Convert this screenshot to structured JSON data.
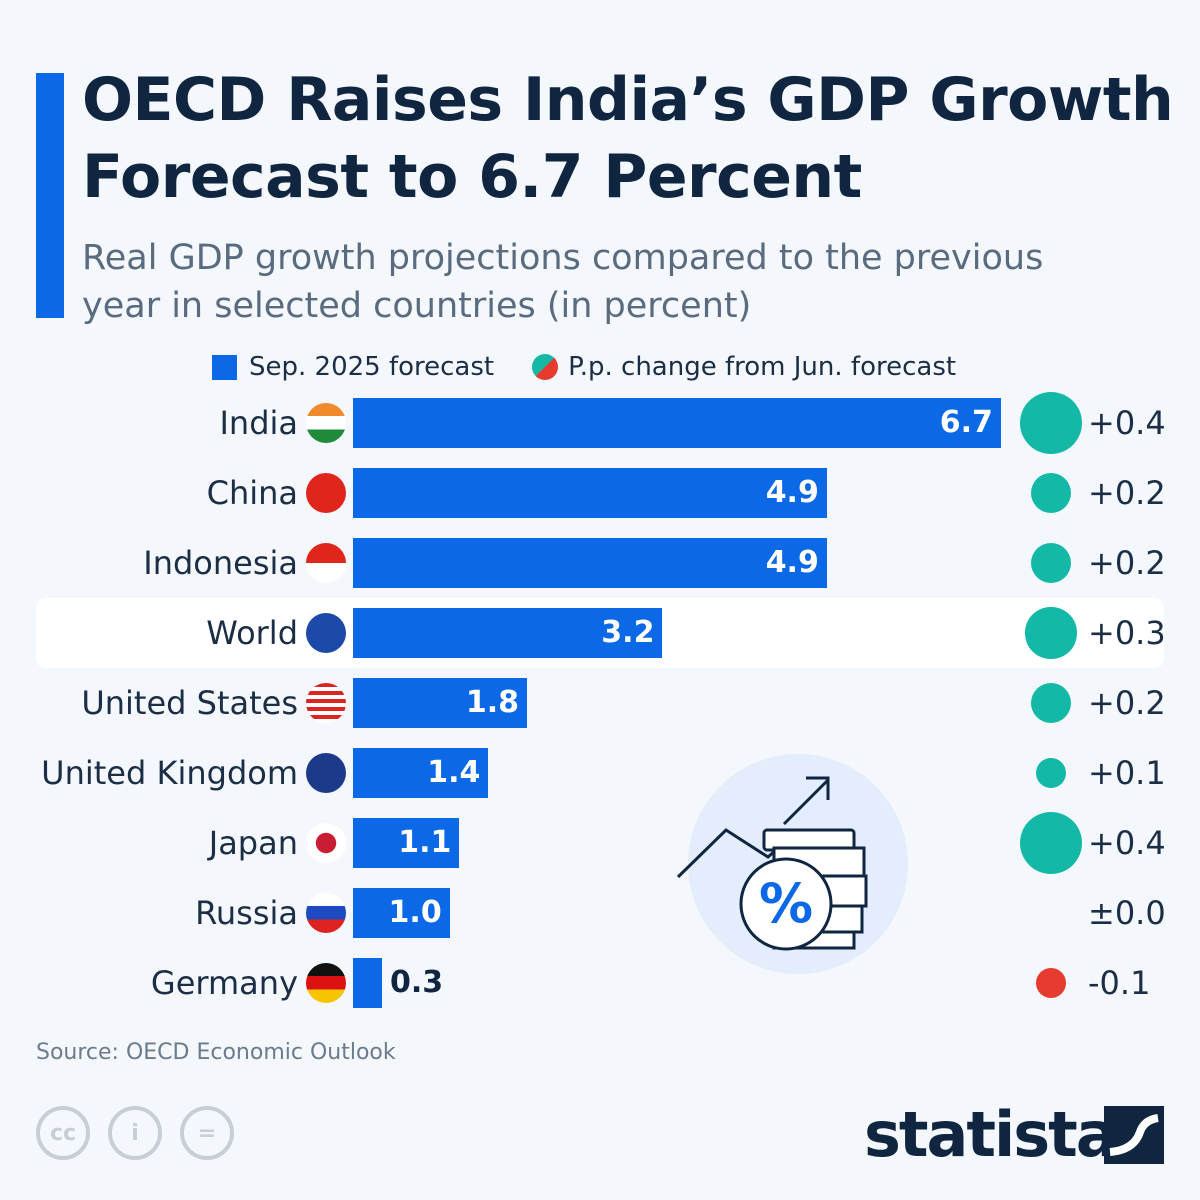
{
  "title": "OECD Raises India’s GDP Growth Forecast to 6.7 Percent",
  "subtitle": "Real GDP growth projections compared to the previous year in selected countries (in percent)",
  "legend": {
    "bar": "Sep. 2025 forecast",
    "dot": "P.p. change from Jun. forecast"
  },
  "colors": {
    "bar": "#0b68e6",
    "positive": "#14b8a6",
    "negative": "#e63b2e",
    "highlight_row": "#ffffff"
  },
  "chart_data": {
    "type": "bar",
    "orientation": "horizontal",
    "title": "OECD Raises India’s GDP Growth Forecast to 6.7 Percent",
    "categories": [
      "India",
      "China",
      "Indonesia",
      "World",
      "United States",
      "United Kingdom",
      "Japan",
      "Russia",
      "Germany"
    ],
    "series": [
      {
        "name": "Sep. 2025 forecast",
        "values": [
          6.7,
          4.9,
          4.9,
          3.2,
          1.8,
          1.4,
          1.1,
          1.0,
          0.3
        ]
      },
      {
        "name": "P.p. change from Jun. forecast",
        "values": [
          0.4,
          0.2,
          0.2,
          0.3,
          0.2,
          0.1,
          0.4,
          0.0,
          -0.1
        ]
      }
    ],
    "value_labels": [
      "6.7",
      "4.9",
      "4.9",
      "3.2",
      "1.8",
      "1.4",
      "1.1",
      "1.0",
      "0.3"
    ],
    "change_labels": [
      "+0.4",
      "+0.2",
      "+0.2",
      "+0.3",
      "+0.2",
      "+0.1",
      "+0.4",
      "±0.0",
      "-0.1"
    ],
    "highlighted": "World",
    "grid": false,
    "legend_position": "top"
  },
  "source": "Source: OECD Economic Outlook",
  "brand": "statista",
  "license_icons": [
    "cc-icon",
    "attribution-icon",
    "no-derivatives-icon"
  ]
}
